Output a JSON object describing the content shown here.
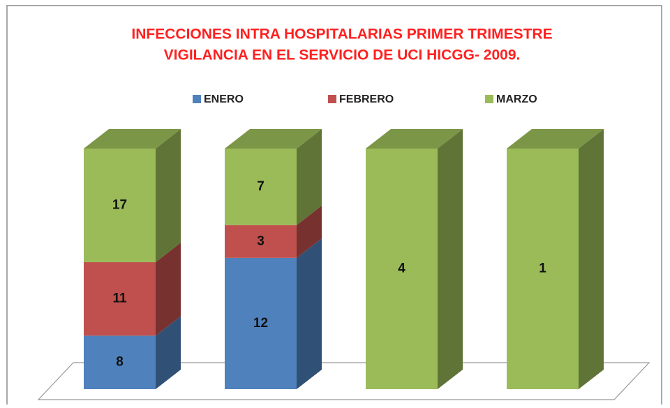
{
  "chart_data": {
    "type": "stacked_bar_100_3d",
    "title": [
      "INFECCIONES INTRA HOSPITALARIAS PRIMER TRIMESTRE",
      "VIGILANCIA EN EL SERVICIO DE UCI HICGG- 2009."
    ],
    "categories": [
      null,
      null,
      null,
      null
    ],
    "series": [
      {
        "name": "ENERO",
        "color": "#4f81bd",
        "values": [
          8,
          12,
          null,
          null
        ]
      },
      {
        "name": "FEBRERO",
        "color": "#c0504d",
        "values": [
          11,
          3,
          null,
          null
        ]
      },
      {
        "name": "MARZO",
        "color": "#9bbb59",
        "values": [
          17,
          7,
          4,
          1
        ]
      }
    ],
    "legend": "top"
  }
}
